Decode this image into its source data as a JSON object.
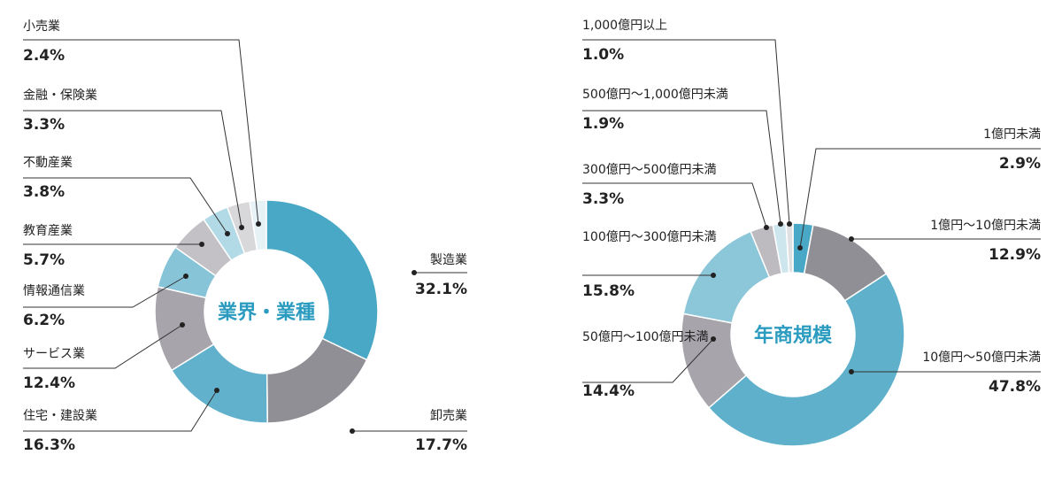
{
  "chart_data": [
    {
      "type": "pie",
      "title": "業界・業種",
      "slices": [
        {
          "label": "製造業",
          "value": 32.1,
          "value_label": "32.1%",
          "color": "#48a8c6"
        },
        {
          "label": "卸売業",
          "value": 17.7,
          "value_label": "17.7%",
          "color": "#8f8f95"
        },
        {
          "label": "住宅・建設業",
          "value": 16.3,
          "value_label": "16.3%",
          "color": "#62b1cc"
        },
        {
          "label": "サービス業",
          "value": 12.4,
          "value_label": "12.4%",
          "color": "#a7a5ab"
        },
        {
          "label": "情報通信業",
          "value": 6.2,
          "value_label": "6.2%",
          "color": "#87c4d8"
        },
        {
          "label": "教育産業",
          "value": 5.7,
          "value_label": "5.7%",
          "color": "#c3c1c5"
        },
        {
          "label": "不動産業",
          "value": 3.8,
          "value_label": "3.8%",
          "color": "#b2dae6"
        },
        {
          "label": "金融・保険業",
          "value": 3.3,
          "value_label": "3.3%",
          "color": "#d8d7da"
        },
        {
          "label": "小売業",
          "value": 2.4,
          "value_label": "2.4%",
          "color": "#e6f2f6"
        }
      ]
    },
    {
      "type": "pie",
      "title": "年商規模",
      "slices": [
        {
          "label": "1億円未満",
          "value": 2.9,
          "value_label": "2.9%",
          "color": "#48a8c6"
        },
        {
          "label": "1億円～10億円未満",
          "value": 12.9,
          "value_label": "12.9%",
          "color": "#8f8f95"
        },
        {
          "label": "10億円～50億円未満",
          "value": 47.8,
          "value_label": "47.8%",
          "color": "#5fb0cb"
        },
        {
          "label": "50億円～100億円未満",
          "value": 14.4,
          "value_label": "14.4%",
          "color": "#a7a5ab"
        },
        {
          "label": "100億円～300億円未満",
          "value": 15.8,
          "value_label": "15.8%",
          "color": "#8cc6d9"
        },
        {
          "label": "300億円～500億円未満",
          "value": 3.3,
          "value_label": "3.3%",
          "color": "#bdbbbf"
        },
        {
          "label": "500億円～1,000億円未満",
          "value": 1.9,
          "value_label": "1.9%",
          "color": "#cde6ee"
        },
        {
          "label": "1,000億円以上",
          "value": 1.0,
          "value_label": "1.0%",
          "color": "#dfe0e2"
        }
      ]
    }
  ]
}
